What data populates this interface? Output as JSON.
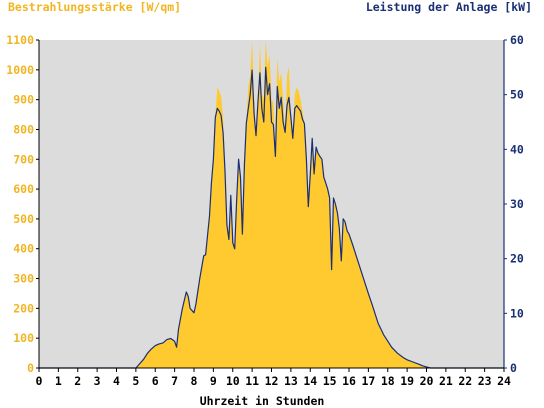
{
  "colors": {
    "irradiance": "#FFC930",
    "power": "#1A2F74",
    "left_axis_text": "#F2B522",
    "right_axis_text": "#1A2F74",
    "plot_background": "#DCDCDC"
  },
  "chart_data": {
    "type": "area",
    "title": "",
    "left_axis_label": "Bestrahlungsstärke [W/qm]",
    "right_axis_label": "Leistung der Anlage [kW]",
    "xlabel": "Uhrzeit in Stunden",
    "xlim": [
      0,
      24
    ],
    "x_ticks": [
      "0",
      "1",
      "2",
      "3",
      "4",
      "5",
      "6",
      "7",
      "8",
      "9",
      "10",
      "11",
      "12",
      "13",
      "14",
      "15",
      "16",
      "17",
      "18",
      "19",
      "20",
      "21",
      "22",
      "23",
      "24"
    ],
    "ylim_left": [
      0,
      1100
    ],
    "y_ticks_left": [
      "0",
      "100",
      "200",
      "300",
      "400",
      "500",
      "600",
      "700",
      "800",
      "900",
      "1000",
      "1100"
    ],
    "ylim_right": [
      0,
      60
    ],
    "y_ticks_right": [
      "0",
      "10",
      "20",
      "30",
      "40",
      "50",
      "60"
    ],
    "legend": "none",
    "grid": false,
    "series": [
      {
        "name": "Bestrahlungsstärke [W/qm]",
        "axis": "left",
        "kind": "area",
        "points": [
          [
            0,
            0
          ],
          [
            5.0,
            0
          ],
          [
            5.2,
            15
          ],
          [
            5.4,
            30
          ],
          [
            5.6,
            50
          ],
          [
            5.8,
            65
          ],
          [
            6.0,
            75
          ],
          [
            6.2,
            80
          ],
          [
            6.4,
            85
          ],
          [
            6.6,
            95
          ],
          [
            6.8,
            100
          ],
          [
            7.0,
            90
          ],
          [
            7.1,
            70
          ],
          [
            7.2,
            130
          ],
          [
            7.4,
            200
          ],
          [
            7.6,
            255
          ],
          [
            7.7,
            240
          ],
          [
            7.8,
            200
          ],
          [
            8.0,
            185
          ],
          [
            8.1,
            215
          ],
          [
            8.3,
            300
          ],
          [
            8.5,
            375
          ],
          [
            8.6,
            380
          ],
          [
            8.8,
            510
          ],
          [
            8.9,
            620
          ],
          [
            9.0,
            700
          ],
          [
            9.1,
            840
          ],
          [
            9.2,
            940
          ],
          [
            9.3,
            930
          ],
          [
            9.4,
            910
          ],
          [
            9.5,
            840
          ],
          [
            9.6,
            660
          ],
          [
            9.7,
            480
          ],
          [
            9.8,
            430
          ],
          [
            9.9,
            580
          ],
          [
            10.0,
            420
          ],
          [
            10.1,
            400
          ],
          [
            10.2,
            560
          ],
          [
            10.3,
            700
          ],
          [
            10.4,
            640
          ],
          [
            10.5,
            450
          ],
          [
            10.6,
            680
          ],
          [
            10.7,
            820
          ],
          [
            10.8,
            940
          ],
          [
            10.9,
            980
          ],
          [
            11.0,
            1100
          ],
          [
            11.1,
            900
          ],
          [
            11.2,
            780
          ],
          [
            11.3,
            890
          ],
          [
            11.4,
            1090
          ],
          [
            11.5,
            920
          ],
          [
            11.6,
            900
          ],
          [
            11.7,
            1100
          ],
          [
            11.8,
            1010
          ],
          [
            11.9,
            1050
          ],
          [
            12.0,
            900
          ],
          [
            12.1,
            890
          ],
          [
            12.2,
            710
          ],
          [
            12.3,
            1040
          ],
          [
            12.4,
            960
          ],
          [
            12.5,
            990
          ],
          [
            12.6,
            900
          ],
          [
            12.7,
            790
          ],
          [
            12.8,
            980
          ],
          [
            12.9,
            1010
          ],
          [
            13.0,
            840
          ],
          [
            13.1,
            770
          ],
          [
            13.2,
            920
          ],
          [
            13.3,
            940
          ],
          [
            13.4,
            930
          ],
          [
            13.5,
            900
          ],
          [
            13.6,
            860
          ],
          [
            13.7,
            820
          ],
          [
            13.8,
            700
          ],
          [
            13.9,
            540
          ],
          [
            14.0,
            650
          ],
          [
            14.1,
            770
          ],
          [
            14.2,
            650
          ],
          [
            14.3,
            740
          ],
          [
            14.4,
            720
          ],
          [
            14.5,
            710
          ],
          [
            14.6,
            700
          ],
          [
            14.7,
            640
          ],
          [
            14.8,
            620
          ],
          [
            14.9,
            600
          ],
          [
            15.0,
            570
          ],
          [
            15.1,
            330
          ],
          [
            15.2,
            570
          ],
          [
            15.3,
            550
          ],
          [
            15.4,
            520
          ],
          [
            15.5,
            470
          ],
          [
            15.6,
            360
          ],
          [
            15.7,
            500
          ],
          [
            15.8,
            490
          ],
          [
            15.9,
            460
          ],
          [
            16.0,
            450
          ],
          [
            16.2,
            410
          ],
          [
            16.5,
            350
          ],
          [
            16.8,
            290
          ],
          [
            17.0,
            250
          ],
          [
            17.2,
            210
          ],
          [
            17.5,
            150
          ],
          [
            17.8,
            110
          ],
          [
            18.0,
            90
          ],
          [
            18.2,
            70
          ],
          [
            18.5,
            50
          ],
          [
            18.8,
            35
          ],
          [
            19.0,
            28
          ],
          [
            19.3,
            20
          ],
          [
            19.6,
            12
          ],
          [
            19.8,
            8
          ],
          [
            20.0,
            3
          ],
          [
            20.2,
            0
          ],
          [
            24,
            0
          ]
        ]
      },
      {
        "name": "Leistung der Anlage [kW]",
        "axis": "right",
        "kind": "line",
        "points": [
          [
            0,
            0
          ],
          [
            5.0,
            0
          ],
          [
            5.2,
            0.8
          ],
          [
            5.4,
            1.6
          ],
          [
            5.6,
            2.7
          ],
          [
            5.8,
            3.5
          ],
          [
            6.0,
            4.1
          ],
          [
            6.2,
            4.4
          ],
          [
            6.4,
            4.6
          ],
          [
            6.6,
            5.2
          ],
          [
            6.8,
            5.4
          ],
          [
            7.0,
            4.9
          ],
          [
            7.1,
            3.8
          ],
          [
            7.2,
            7.1
          ],
          [
            7.4,
            10.9
          ],
          [
            7.6,
            13.9
          ],
          [
            7.7,
            13.1
          ],
          [
            7.8,
            10.9
          ],
          [
            8.0,
            10.1
          ],
          [
            8.1,
            11.7
          ],
          [
            8.3,
            16.4
          ],
          [
            8.5,
            20.5
          ],
          [
            8.6,
            20.7
          ],
          [
            8.8,
            27.8
          ],
          [
            8.9,
            33.8
          ],
          [
            9.0,
            38.2
          ],
          [
            9.1,
            45.8
          ],
          [
            9.2,
            47.5
          ],
          [
            9.3,
            47.0
          ],
          [
            9.4,
            46.2
          ],
          [
            9.5,
            43.0
          ],
          [
            9.6,
            36.0
          ],
          [
            9.7,
            26.2
          ],
          [
            9.8,
            23.5
          ],
          [
            9.9,
            31.6
          ],
          [
            10.0,
            22.9
          ],
          [
            10.1,
            21.8
          ],
          [
            10.2,
            30.5
          ],
          [
            10.3,
            38.2
          ],
          [
            10.4,
            34.9
          ],
          [
            10.5,
            24.5
          ],
          [
            10.6,
            37.1
          ],
          [
            10.7,
            44.7
          ],
          [
            10.8,
            47.5
          ],
          [
            10.9,
            50.0
          ],
          [
            11.0,
            54.5
          ],
          [
            11.1,
            46.5
          ],
          [
            11.2,
            42.5
          ],
          [
            11.3,
            48.5
          ],
          [
            11.4,
            54.0
          ],
          [
            11.5,
            47.5
          ],
          [
            11.6,
            45.0
          ],
          [
            11.7,
            55.0
          ],
          [
            11.8,
            50.0
          ],
          [
            11.9,
            52.0
          ],
          [
            12.0,
            45.0
          ],
          [
            12.1,
            44.5
          ],
          [
            12.2,
            38.7
          ],
          [
            12.3,
            51.5
          ],
          [
            12.4,
            47.5
          ],
          [
            12.5,
            49.5
          ],
          [
            12.6,
            45.0
          ],
          [
            12.7,
            43.1
          ],
          [
            12.8,
            48.0
          ],
          [
            12.9,
            49.5
          ],
          [
            13.0,
            45.8
          ],
          [
            13.1,
            42.0
          ],
          [
            13.2,
            47.5
          ],
          [
            13.3,
            48.0
          ],
          [
            13.4,
            47.5
          ],
          [
            13.5,
            47.0
          ],
          [
            13.6,
            45.5
          ],
          [
            13.7,
            44.7
          ],
          [
            13.8,
            38.2
          ],
          [
            13.9,
            29.5
          ],
          [
            14.0,
            35.5
          ],
          [
            14.1,
            42.0
          ],
          [
            14.2,
            35.5
          ],
          [
            14.3,
            40.4
          ],
          [
            14.4,
            39.3
          ],
          [
            14.5,
            38.7
          ],
          [
            14.6,
            38.2
          ],
          [
            14.7,
            34.9
          ],
          [
            14.8,
            33.8
          ],
          [
            14.9,
            32.7
          ],
          [
            15.0,
            31.1
          ],
          [
            15.1,
            18.0
          ],
          [
            15.2,
            31.1
          ],
          [
            15.3,
            30.0
          ],
          [
            15.4,
            28.4
          ],
          [
            15.5,
            25.6
          ],
          [
            15.6,
            19.6
          ],
          [
            15.7,
            27.3
          ],
          [
            15.8,
            26.7
          ],
          [
            15.9,
            25.1
          ],
          [
            16.0,
            24.5
          ],
          [
            16.2,
            22.4
          ],
          [
            16.5,
            19.1
          ],
          [
            16.8,
            15.8
          ],
          [
            17.0,
            13.6
          ],
          [
            17.2,
            11.5
          ],
          [
            17.5,
            8.2
          ],
          [
            17.8,
            6.0
          ],
          [
            18.0,
            4.9
          ],
          [
            18.2,
            3.8
          ],
          [
            18.5,
            2.7
          ],
          [
            18.8,
            1.9
          ],
          [
            19.0,
            1.5
          ],
          [
            19.3,
            1.1
          ],
          [
            19.6,
            0.7
          ],
          [
            19.8,
            0.4
          ],
          [
            20.0,
            0.2
          ],
          [
            20.2,
            0
          ],
          [
            24,
            0
          ]
        ]
      }
    ]
  }
}
